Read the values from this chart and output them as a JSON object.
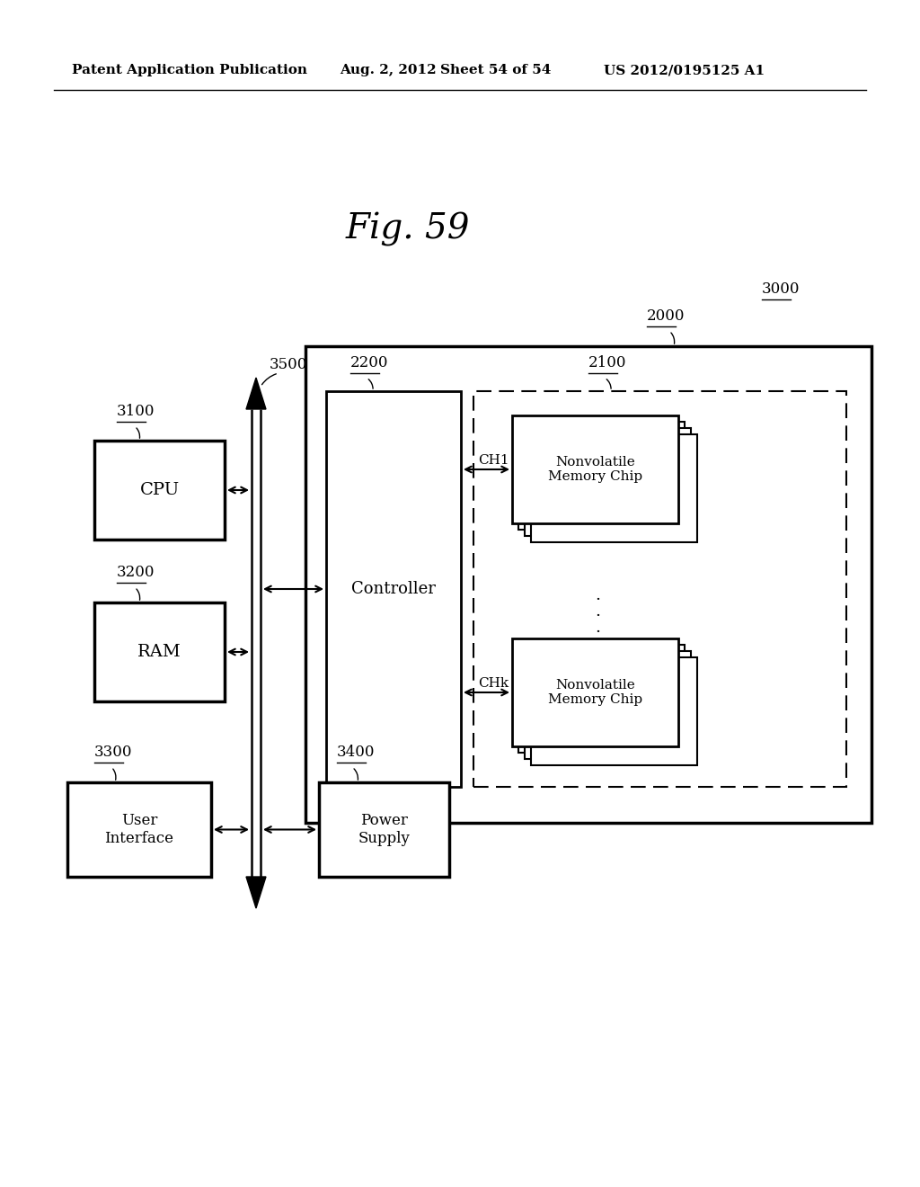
{
  "bg_color": "#ffffff",
  "header_text": "Patent Application Publication",
  "header_date": "Aug. 2, 2012",
  "header_sheet": "Sheet 54 of 54",
  "header_patent": "US 2012/0195125 A1",
  "fig_title": "Fig. 59",
  "label_3000": "3000",
  "label_2000": "2000",
  "label_3500": "3500",
  "label_3100": "3100",
  "label_3200": "3200",
  "label_3300": "3300",
  "label_3400": "3400",
  "label_2200": "2200",
  "label_2100": "2100",
  "label_ch1": "CH1",
  "label_chk": "CHk",
  "label_cpu": "CPU",
  "label_ram": "RAM",
  "label_controller": "Controller",
  "label_user_interface": "User\nInterface",
  "label_power_supply": "Power\nSupply",
  "label_nvm_chip": "Nonvolatile\nMemory Chip"
}
